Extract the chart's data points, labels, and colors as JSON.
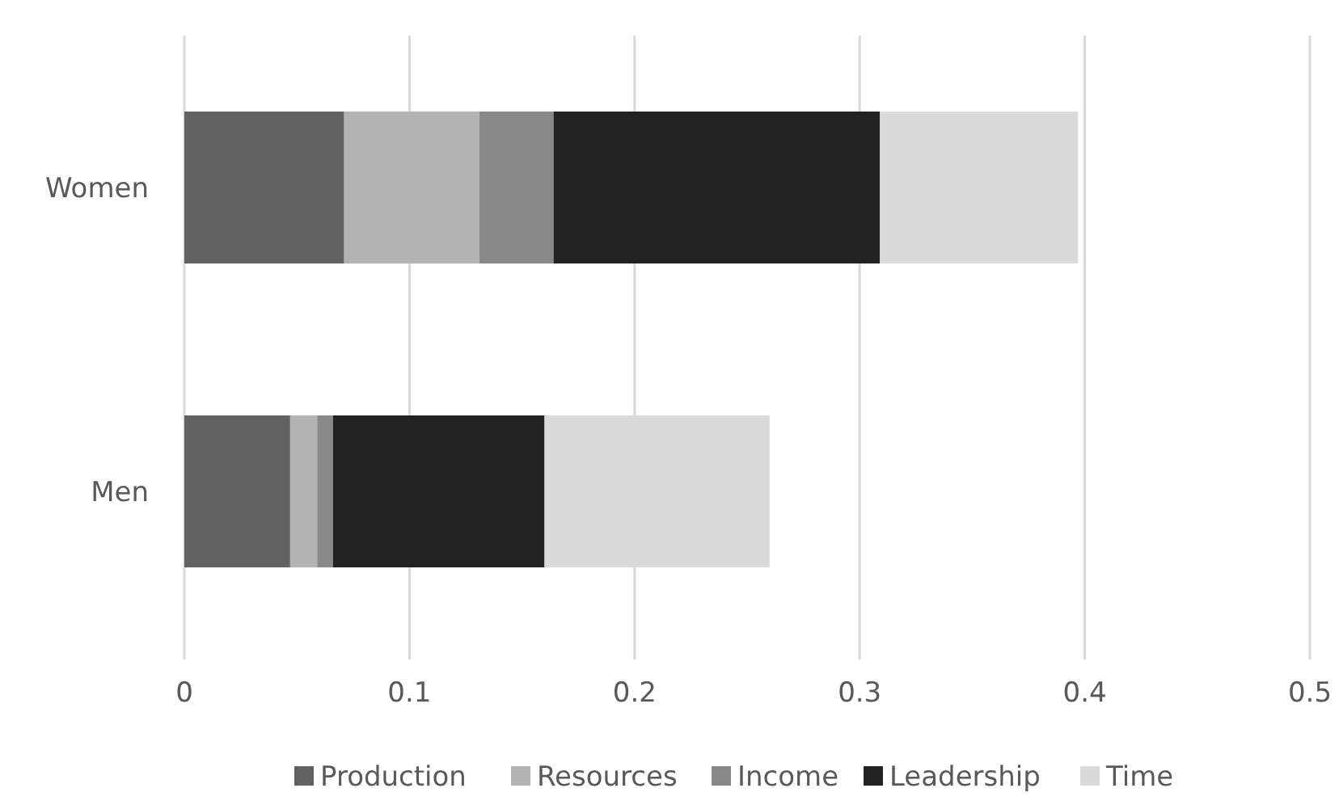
{
  "chart_data": {
    "type": "bar",
    "orientation": "horizontal",
    "stacked": true,
    "categories": [
      "Women",
      "Men"
    ],
    "series": [
      {
        "name": "Production",
        "color": "#626262",
        "values": [
          0.071,
          0.047
        ]
      },
      {
        "name": "Resources",
        "color": "#b3b3b3",
        "values": [
          0.06,
          0.012
        ]
      },
      {
        "name": "Income",
        "color": "#898989",
        "values": [
          0.033,
          0.007
        ]
      },
      {
        "name": "Leadership",
        "color": "#222222",
        "values": [
          0.145,
          0.094
        ]
      },
      {
        "name": "Time",
        "color": "#dadada",
        "values": [
          0.088,
          0.1
        ]
      }
    ],
    "xlim": [
      0,
      0.5
    ],
    "xticks": [
      0,
      0.1,
      0.2,
      0.3,
      0.4,
      0.5
    ],
    "grid": "x",
    "legend": "bottom"
  }
}
